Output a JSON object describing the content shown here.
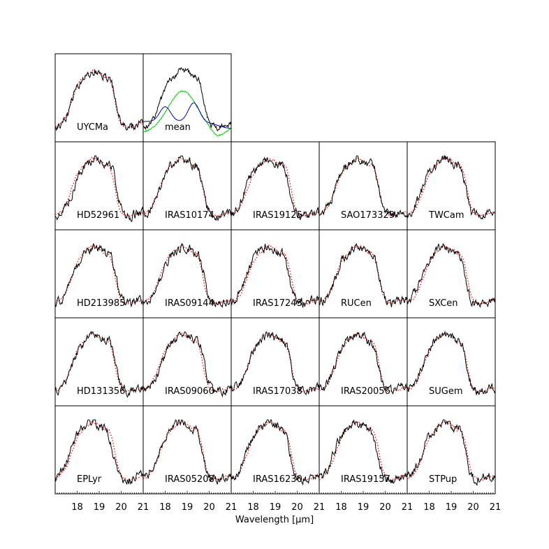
{
  "chart_data": {
    "type": "line",
    "layout": "small-multiples grid, 5 columns x 5 rows, top row has 2 panels",
    "xlabel": "Wavelength  [μm]",
    "xlim": [
      17.0,
      21.0
    ],
    "xticks": [
      18,
      19,
      20,
      21
    ],
    "y_axis_labels": "none",
    "series_styles": {
      "observed": {
        "color": "#000000",
        "style": "solid"
      },
      "template": {
        "color": "#ff0000",
        "style": "dotted"
      },
      "mean": {
        "color": "#000000",
        "style": "solid"
      },
      "mean_component_1": {
        "color": "#00cc00",
        "style": "solid"
      },
      "mean_component_2": {
        "color": "#0000cc",
        "style": "solid"
      }
    },
    "panels": [
      {
        "label": "UYCMa",
        "row": 0,
        "col": 0
      },
      {
        "label": "mean",
        "row": 0,
        "col": 1
      },
      {
        "label": "HD52961",
        "row": 1,
        "col": 0
      },
      {
        "label": "IRAS10174",
        "row": 1,
        "col": 1
      },
      {
        "label": "IRAS19125",
        "row": 1,
        "col": 2
      },
      {
        "label": "SAO173329",
        "row": 1,
        "col": 3
      },
      {
        "label": "TWCam",
        "row": 1,
        "col": 4
      },
      {
        "label": "HD213985",
        "row": 2,
        "col": 0
      },
      {
        "label": "IRAS09144",
        "row": 2,
        "col": 1
      },
      {
        "label": "IRAS17243",
        "row": 2,
        "col": 2
      },
      {
        "label": "RUCen",
        "row": 2,
        "col": 3
      },
      {
        "label": "SXCen",
        "row": 2,
        "col": 4
      },
      {
        "label": "HD131356",
        "row": 3,
        "col": 0
      },
      {
        "label": "IRAS09060",
        "row": 3,
        "col": 1
      },
      {
        "label": "IRAS17038",
        "row": 3,
        "col": 2
      },
      {
        "label": "IRAS20056",
        "row": 3,
        "col": 3
      },
      {
        "label": "SUGem",
        "row": 3,
        "col": 4
      },
      {
        "label": "EPLyr",
        "row": 4,
        "col": 0
      },
      {
        "label": "IRAS05208",
        "row": 4,
        "col": 1
      },
      {
        "label": "IRAS16230",
        "row": 4,
        "col": 2
      },
      {
        "label": "IRAS19157",
        "row": 4,
        "col": 3
      },
      {
        "label": "STPup",
        "row": 4,
        "col": 4
      }
    ]
  }
}
